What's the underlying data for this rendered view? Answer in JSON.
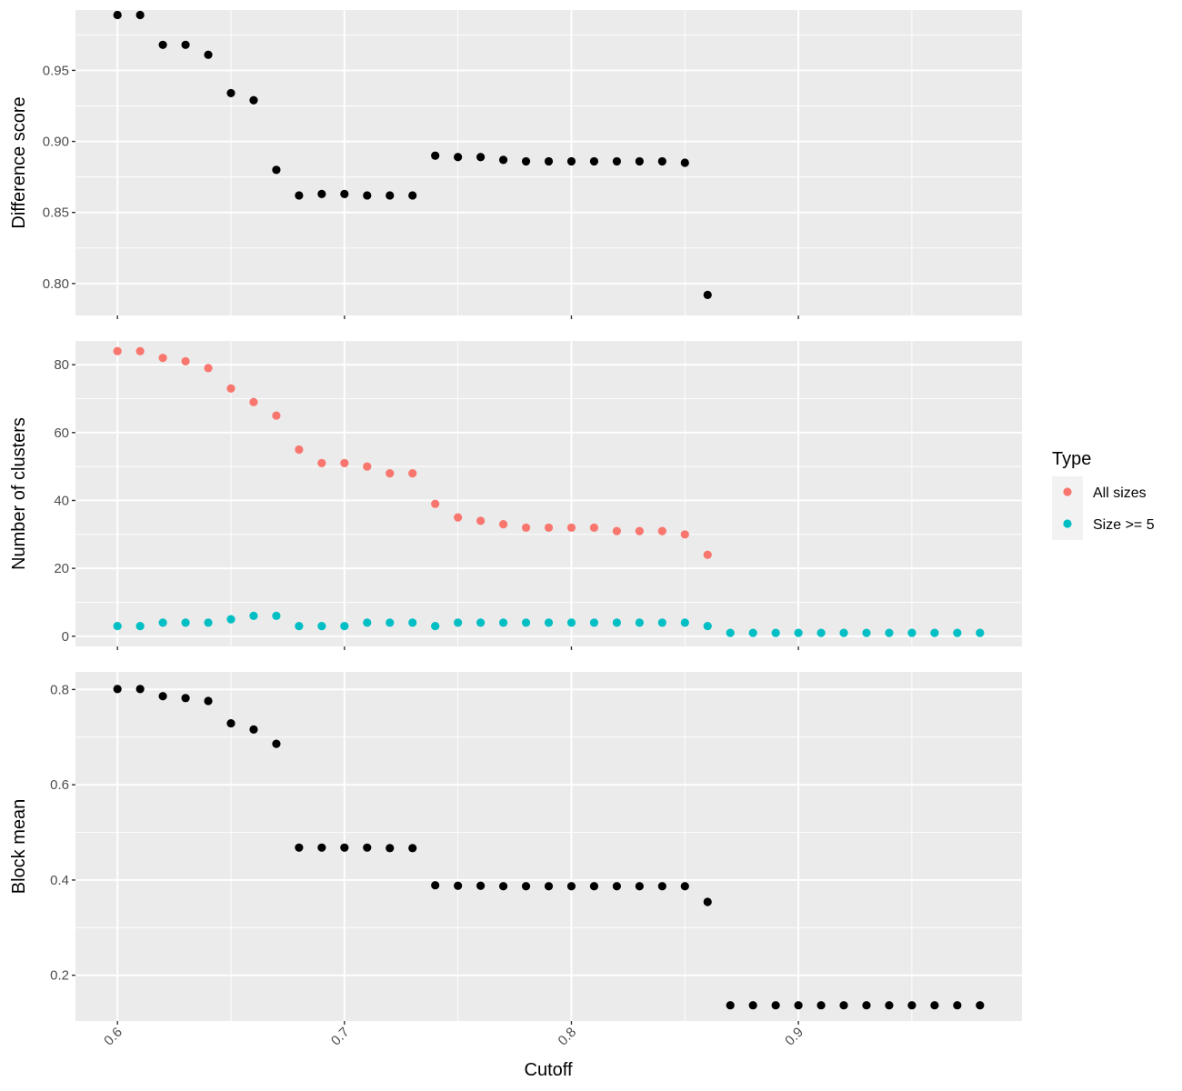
{
  "chart_data": {
    "type": "scatter",
    "xlabel": "Cutoff",
    "x_ticks": [
      "0.6",
      "0.7",
      "0.8",
      "0.9"
    ],
    "xlim": [
      0.5815,
      0.9985
    ],
    "style": {
      "panel_bg": "#ebebeb",
      "grid": "#ffffff",
      "point_default": "#000000"
    },
    "legend": {
      "title": "Type",
      "placement": "right",
      "entries": [
        {
          "label": "All sizes",
          "color": "#f8766d"
        },
        {
          "label": "Size >= 5",
          "color": "#00bfc4"
        }
      ]
    },
    "panels": [
      {
        "ylabel": "Difference score",
        "ylim": [
          0.7775,
          0.9925
        ],
        "y_ticks": [
          "0.80",
          "0.85",
          "0.90",
          "0.95"
        ],
        "series": [
          {
            "color": "#000000",
            "x": [
              0.6,
              0.61,
              0.62,
              0.63,
              0.64,
              0.65,
              0.66,
              0.67,
              0.68,
              0.69,
              0.7,
              0.71,
              0.72,
              0.73,
              0.74,
              0.75,
              0.76,
              0.77,
              0.78,
              0.79,
              0.8,
              0.81,
              0.82,
              0.83,
              0.84,
              0.85,
              0.86
            ],
            "y": [
              0.989,
              0.989,
              0.968,
              0.968,
              0.961,
              0.934,
              0.929,
              0.88,
              0.862,
              0.863,
              0.863,
              0.862,
              0.862,
              0.862,
              0.89,
              0.889,
              0.889,
              0.887,
              0.886,
              0.886,
              0.886,
              0.886,
              0.886,
              0.886,
              0.886,
              0.885,
              0.792
            ]
          }
        ]
      },
      {
        "ylabel": "Number of clusters",
        "ylim": [
          -3,
          87
        ],
        "y_ticks": [
          "0",
          "20",
          "40",
          "60",
          "80"
        ],
        "series": [
          {
            "name": "All sizes",
            "color": "#f8766d",
            "x": [
              0.6,
              0.61,
              0.62,
              0.63,
              0.64,
              0.65,
              0.66,
              0.67,
              0.68,
              0.69,
              0.7,
              0.71,
              0.72,
              0.73,
              0.74,
              0.75,
              0.76,
              0.77,
              0.78,
              0.79,
              0.8,
              0.81,
              0.82,
              0.83,
              0.84,
              0.85,
              0.86
            ],
            "y": [
              84,
              84,
              82,
              81,
              79,
              73,
              69,
              65,
              55,
              51,
              51,
              50,
              48,
              48,
              39,
              35,
              34,
              33,
              32,
              32,
              32,
              32,
              31,
              31,
              31,
              30,
              24
            ]
          },
          {
            "name": "Size >= 5",
            "color": "#00bfc4",
            "x": [
              0.6,
              0.61,
              0.62,
              0.63,
              0.64,
              0.65,
              0.66,
              0.67,
              0.68,
              0.69,
              0.7,
              0.71,
              0.72,
              0.73,
              0.74,
              0.75,
              0.76,
              0.77,
              0.78,
              0.79,
              0.8,
              0.81,
              0.82,
              0.83,
              0.84,
              0.85,
              0.86,
              0.87,
              0.88,
              0.89,
              0.9,
              0.91,
              0.92,
              0.93,
              0.94,
              0.95,
              0.96,
              0.97,
              0.98
            ],
            "y": [
              3,
              3,
              4,
              4,
              4,
              5,
              6,
              6,
              3,
              3,
              3,
              4,
              4,
              4,
              3,
              4,
              4,
              4,
              4,
              4,
              4,
              4,
              4,
              4,
              4,
              4,
              3,
              1,
              1,
              1,
              1,
              1,
              1,
              1,
              1,
              1,
              1,
              1,
              1
            ]
          }
        ]
      },
      {
        "ylabel": "Block mean",
        "ylim": [
          0.104,
          0.837
        ],
        "y_ticks": [
          "0.2",
          "0.4",
          "0.6",
          "0.8"
        ],
        "series": [
          {
            "color": "#000000",
            "x": [
              0.6,
              0.61,
              0.62,
              0.63,
              0.64,
              0.65,
              0.66,
              0.67,
              0.68,
              0.69,
              0.7,
              0.71,
              0.72,
              0.73,
              0.74,
              0.75,
              0.76,
              0.77,
              0.78,
              0.79,
              0.8,
              0.81,
              0.82,
              0.83,
              0.84,
              0.85,
              0.86,
              0.87,
              0.88,
              0.89,
              0.9,
              0.91,
              0.92,
              0.93,
              0.94,
              0.95,
              0.96,
              0.97,
              0.98
            ],
            "y": [
              0.801,
              0.801,
              0.786,
              0.782,
              0.776,
              0.729,
              0.716,
              0.686,
              0.468,
              0.468,
              0.468,
              0.468,
              0.467,
              0.467,
              0.389,
              0.388,
              0.388,
              0.387,
              0.387,
              0.387,
              0.387,
              0.387,
              0.387,
              0.387,
              0.387,
              0.387,
              0.354,
              0.137,
              0.137,
              0.137,
              0.137,
              0.137,
              0.137,
              0.137,
              0.137,
              0.137,
              0.137,
              0.137,
              0.137
            ]
          }
        ]
      }
    ]
  }
}
